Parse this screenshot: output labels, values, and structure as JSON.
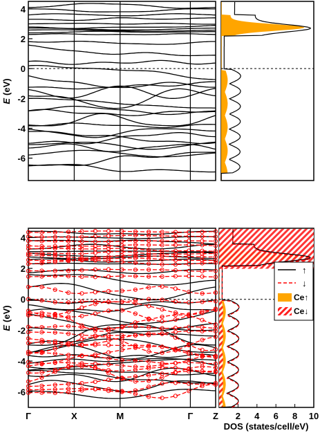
{
  "chart_data": [
    {
      "type": "line",
      "panel": "top-band-structure",
      "ylabel": "E (eV)",
      "ylabel_italic": "E",
      "ylabel_unit": "(eV)",
      "ylim": [
        -7.5,
        4.5
      ],
      "yticks": [
        -6,
        -4,
        -2,
        0,
        2,
        4
      ],
      "k_points": [
        "Γ",
        "X",
        "M",
        "Γ",
        "Z"
      ],
      "fermi_level": 0,
      "grid": false,
      "series": [
        {
          "style": "black-solid",
          "color": "#000000"
        }
      ]
    },
    {
      "type": "area",
      "panel": "top-dos",
      "ylim": [
        -7.5,
        4.5
      ],
      "xlim": [
        0,
        10
      ],
      "series": [
        {
          "style": "black-solid-total",
          "color": "#000000"
        },
        {
          "style": "orange-filled-ce",
          "color": "#ffa500"
        }
      ]
    },
    {
      "type": "line",
      "panel": "bottom-band-structure",
      "ylabel": "E (eV)",
      "ylabel_italic": "E",
      "ylabel_unit": "(eV)",
      "ylim": [
        -7,
        4.6
      ],
      "yticks": [
        -6,
        -4,
        -2,
        0,
        2,
        4
      ],
      "xticks": [
        "Γ",
        "X",
        "M",
        "Γ",
        "Z"
      ],
      "fermi_level": 0,
      "grid": false,
      "series": [
        {
          "style": "black-solid-spin-up",
          "color": "#000000"
        },
        {
          "style": "red-dashed-circles-spin-down",
          "color": "#ff0000"
        }
      ]
    },
    {
      "type": "area",
      "panel": "bottom-dos",
      "ylim": [
        -7,
        4.6
      ],
      "xlim": [
        0,
        10
      ],
      "xticks": [
        "2",
        "4",
        "6",
        "8",
        "10"
      ],
      "xlabel": "DOS (states/cell/eV)",
      "legend_position": "right",
      "series": [
        {
          "name": "↑",
          "style": "black-solid",
          "color": "#000000"
        },
        {
          "name": "↓",
          "style": "red-dashed",
          "color": "#ff0000"
        },
        {
          "name": "Ce↑",
          "style": "orange-filled",
          "color": "#ffa500"
        },
        {
          "name": "Ce↓",
          "style": "red-hatched",
          "color": "#ff0000"
        }
      ]
    }
  ]
}
